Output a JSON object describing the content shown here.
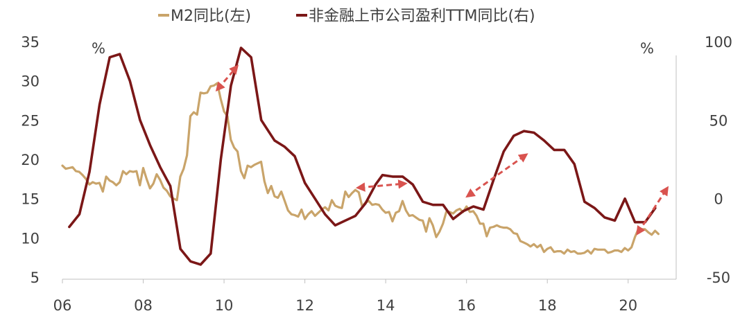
{
  "chart_data": {
    "type": "line",
    "legend": {
      "placement": "top-center"
    },
    "grid": false,
    "x": {
      "tick_labels": [
        "06",
        "08",
        "10",
        "12",
        "14",
        "16",
        "18",
        "20"
      ],
      "range": [
        2006,
        2021
      ]
    },
    "y_left": {
      "unit": "%",
      "range": [
        5,
        35
      ],
      "ticks": [
        5,
        10,
        15,
        20,
        25,
        30,
        35
      ]
    },
    "y_right": {
      "unit": "%",
      "range": [
        -50,
        100
      ],
      "ticks": [
        -50,
        0,
        50,
        100
      ]
    },
    "series": [
      {
        "name": "M2同比(左)",
        "axis": "left",
        "color": "#C9A46A",
        "points": [
          [
            2006.0,
            19.2
          ],
          [
            2006.083,
            18.8
          ],
          [
            2006.167,
            18.9
          ],
          [
            2006.25,
            19.0
          ],
          [
            2006.333,
            18.5
          ],
          [
            2006.417,
            18.4
          ],
          [
            2006.5,
            18.0
          ],
          [
            2006.583,
            17.5
          ],
          [
            2006.667,
            16.8
          ],
          [
            2006.75,
            17.1
          ],
          [
            2006.833,
            16.9
          ],
          [
            2006.917,
            17.0
          ],
          [
            2007.0,
            15.9
          ],
          [
            2007.083,
            17.8
          ],
          [
            2007.167,
            17.3
          ],
          [
            2007.25,
            17.1
          ],
          [
            2007.333,
            16.7
          ],
          [
            2007.417,
            17.1
          ],
          [
            2007.5,
            18.5
          ],
          [
            2007.583,
            18.1
          ],
          [
            2007.667,
            18.5
          ],
          [
            2007.75,
            18.4
          ],
          [
            2007.833,
            18.5
          ],
          [
            2007.917,
            16.7
          ],
          [
            2008.0,
            18.9
          ],
          [
            2008.083,
            17.5
          ],
          [
            2008.167,
            16.3
          ],
          [
            2008.25,
            16.9
          ],
          [
            2008.333,
            18.1
          ],
          [
            2008.417,
            17.4
          ],
          [
            2008.5,
            16.4
          ],
          [
            2008.583,
            16.0
          ],
          [
            2008.667,
            15.3
          ],
          [
            2008.75,
            15.0
          ],
          [
            2008.833,
            14.8
          ],
          [
            2008.917,
            17.8
          ],
          [
            2009.0,
            18.8
          ],
          [
            2009.083,
            20.5
          ],
          [
            2009.167,
            25.5
          ],
          [
            2009.25,
            26.0
          ],
          [
            2009.333,
            25.7
          ],
          [
            2009.417,
            28.5
          ],
          [
            2009.5,
            28.4
          ],
          [
            2009.583,
            28.5
          ],
          [
            2009.667,
            29.3
          ],
          [
            2009.75,
            29.4
          ],
          [
            2009.833,
            29.7
          ],
          [
            2009.917,
            27.7
          ],
          [
            2010.0,
            26.1
          ],
          [
            2010.083,
            25.5
          ],
          [
            2010.167,
            22.5
          ],
          [
            2010.25,
            21.5
          ],
          [
            2010.333,
            21.0
          ],
          [
            2010.417,
            18.5
          ],
          [
            2010.5,
            17.6
          ],
          [
            2010.583,
            19.2
          ],
          [
            2010.667,
            19.0
          ],
          [
            2010.75,
            19.3
          ],
          [
            2010.833,
            19.5
          ],
          [
            2010.917,
            19.7
          ],
          [
            2011.0,
            17.2
          ],
          [
            2011.083,
            15.7
          ],
          [
            2011.167,
            16.6
          ],
          [
            2011.25,
            15.3
          ],
          [
            2011.333,
            15.1
          ],
          [
            2011.417,
            15.9
          ],
          [
            2011.5,
            14.7
          ],
          [
            2011.583,
            13.5
          ],
          [
            2011.667,
            13.0
          ],
          [
            2011.75,
            12.9
          ],
          [
            2011.833,
            12.7
          ],
          [
            2011.917,
            13.6
          ],
          [
            2012.0,
            12.4
          ],
          [
            2012.083,
            13.0
          ],
          [
            2012.167,
            13.4
          ],
          [
            2012.25,
            12.8
          ],
          [
            2012.333,
            13.2
          ],
          [
            2012.417,
            13.6
          ],
          [
            2012.5,
            13.9
          ],
          [
            2012.583,
            13.5
          ],
          [
            2012.667,
            14.8
          ],
          [
            2012.75,
            14.1
          ],
          [
            2012.833,
            13.9
          ],
          [
            2012.917,
            13.8
          ],
          [
            2013.0,
            15.9
          ],
          [
            2013.083,
            15.2
          ],
          [
            2013.167,
            15.7
          ],
          [
            2013.25,
            16.1
          ],
          [
            2013.333,
            15.8
          ],
          [
            2013.417,
            14.0
          ],
          [
            2013.5,
            14.5
          ],
          [
            2013.583,
            14.7
          ],
          [
            2013.667,
            14.2
          ],
          [
            2013.75,
            14.3
          ],
          [
            2013.833,
            14.2
          ],
          [
            2013.917,
            13.6
          ],
          [
            2014.0,
            13.2
          ],
          [
            2014.083,
            13.3
          ],
          [
            2014.167,
            12.1
          ],
          [
            2014.25,
            13.2
          ],
          [
            2014.333,
            13.4
          ],
          [
            2014.417,
            14.7
          ],
          [
            2014.5,
            13.5
          ],
          [
            2014.583,
            12.8
          ],
          [
            2014.667,
            12.9
          ],
          [
            2014.75,
            12.6
          ],
          [
            2014.833,
            12.3
          ],
          [
            2014.917,
            12.2
          ],
          [
            2015.0,
            10.8
          ],
          [
            2015.083,
            12.5
          ],
          [
            2015.167,
            11.6
          ],
          [
            2015.25,
            10.1
          ],
          [
            2015.333,
            10.8
          ],
          [
            2015.417,
            11.8
          ],
          [
            2015.5,
            13.3
          ],
          [
            2015.583,
            13.3
          ],
          [
            2015.667,
            13.1
          ],
          [
            2015.75,
            13.5
          ],
          [
            2015.833,
            13.7
          ],
          [
            2015.917,
            13.3
          ],
          [
            2016.0,
            14.0
          ],
          [
            2016.083,
            13.3
          ],
          [
            2016.167,
            13.4
          ],
          [
            2016.25,
            12.8
          ],
          [
            2016.333,
            11.8
          ],
          [
            2016.417,
            11.8
          ],
          [
            2016.5,
            10.2
          ],
          [
            2016.583,
            11.3
          ],
          [
            2016.667,
            11.4
          ],
          [
            2016.75,
            11.6
          ],
          [
            2016.833,
            11.4
          ],
          [
            2016.917,
            11.3
          ],
          [
            2017.0,
            11.3
          ],
          [
            2017.083,
            11.1
          ],
          [
            2017.167,
            10.6
          ],
          [
            2017.25,
            10.5
          ],
          [
            2017.333,
            9.6
          ],
          [
            2017.417,
            9.4
          ],
          [
            2017.5,
            9.2
          ],
          [
            2017.583,
            8.9
          ],
          [
            2017.667,
            9.2
          ],
          [
            2017.75,
            8.8
          ],
          [
            2017.833,
            9.1
          ],
          [
            2017.917,
            8.2
          ],
          [
            2018.0,
            8.6
          ],
          [
            2018.083,
            8.8
          ],
          [
            2018.167,
            8.2
          ],
          [
            2018.25,
            8.3
          ],
          [
            2018.333,
            8.3
          ],
          [
            2018.417,
            8.0
          ],
          [
            2018.5,
            8.5
          ],
          [
            2018.583,
            8.2
          ],
          [
            2018.667,
            8.3
          ],
          [
            2018.75,
            8.0
          ],
          [
            2018.833,
            8.0
          ],
          [
            2018.917,
            8.1
          ],
          [
            2019.0,
            8.4
          ],
          [
            2019.083,
            8.0
          ],
          [
            2019.167,
            8.6
          ],
          [
            2019.25,
            8.5
          ],
          [
            2019.333,
            8.5
          ],
          [
            2019.417,
            8.5
          ],
          [
            2019.5,
            8.1
          ],
          [
            2019.583,
            8.2
          ],
          [
            2019.667,
            8.4
          ],
          [
            2019.75,
            8.4
          ],
          [
            2019.833,
            8.2
          ],
          [
            2019.917,
            8.7
          ],
          [
            2020.0,
            8.4
          ],
          [
            2020.083,
            8.8
          ],
          [
            2020.167,
            10.1
          ],
          [
            2020.25,
            11.1
          ],
          [
            2020.333,
            11.1
          ],
          [
            2020.417,
            11.1
          ],
          [
            2020.5,
            10.7
          ],
          [
            2020.583,
            10.4
          ],
          [
            2020.667,
            10.9
          ],
          [
            2020.75,
            10.5
          ]
        ]
      },
      {
        "name": "非金融上市公司盈利TTM同比(右)",
        "axis": "right",
        "color": "#7B1717",
        "points": [
          [
            2006.17,
            -18
          ],
          [
            2006.42,
            -10
          ],
          [
            2006.67,
            17
          ],
          [
            2006.92,
            60
          ],
          [
            2007.17,
            90
          ],
          [
            2007.42,
            92
          ],
          [
            2007.67,
            75
          ],
          [
            2007.92,
            50
          ],
          [
            2008.17,
            34
          ],
          [
            2008.42,
            20
          ],
          [
            2008.67,
            8
          ],
          [
            2008.92,
            -32
          ],
          [
            2009.17,
            -40
          ],
          [
            2009.42,
            -42
          ],
          [
            2009.67,
            -35
          ],
          [
            2009.92,
            25
          ],
          [
            2010.17,
            72
          ],
          [
            2010.42,
            96
          ],
          [
            2010.67,
            90
          ],
          [
            2010.92,
            50
          ],
          [
            2011.25,
            37
          ],
          [
            2011.5,
            33
          ],
          [
            2011.75,
            27
          ],
          [
            2012.0,
            10
          ],
          [
            2012.25,
            0
          ],
          [
            2012.5,
            -10
          ],
          [
            2012.75,
            -17
          ],
          [
            2013.0,
            -14
          ],
          [
            2013.25,
            -11
          ],
          [
            2013.5,
            -3
          ],
          [
            2013.75,
            9
          ],
          [
            2013.92,
            15
          ],
          [
            2014.17,
            14
          ],
          [
            2014.42,
            14
          ],
          [
            2014.67,
            9
          ],
          [
            2014.92,
            -2
          ],
          [
            2015.17,
            -4
          ],
          [
            2015.42,
            -4
          ],
          [
            2015.67,
            -13
          ],
          [
            2015.92,
            -8
          ],
          [
            2016.17,
            -5
          ],
          [
            2016.42,
            -7
          ],
          [
            2016.67,
            12
          ],
          [
            2016.92,
            30
          ],
          [
            2017.17,
            40
          ],
          [
            2017.42,
            43
          ],
          [
            2017.67,
            42
          ],
          [
            2017.92,
            37
          ],
          [
            2018.17,
            31
          ],
          [
            2018.42,
            31
          ],
          [
            2018.67,
            22
          ],
          [
            2018.92,
            -2
          ],
          [
            2019.17,
            -6
          ],
          [
            2019.42,
            -12
          ],
          [
            2019.67,
            -14
          ],
          [
            2019.92,
            0
          ],
          [
            2020.17,
            -15
          ],
          [
            2020.42,
            -15
          ],
          [
            2020.67,
            -6
          ]
        ]
      }
    ],
    "annotations": {
      "color": "#D9534F",
      "style": "dashed double-headed arrows",
      "arrows": [
        {
          "from": [
            2009.85,
            29.0
          ],
          "to": [
            2010.3,
            31.7
          ]
        },
        {
          "from": [
            2013.35,
            16.4
          ],
          "to": [
            2014.45,
            16.9
          ]
        },
        {
          "from": [
            2016.05,
            15.4
          ],
          "to": [
            2017.45,
            20.5
          ]
        },
        {
          "from": [
            2020.25,
            10.7
          ],
          "to": [
            2020.95,
            16.2
          ]
        }
      ]
    }
  }
}
